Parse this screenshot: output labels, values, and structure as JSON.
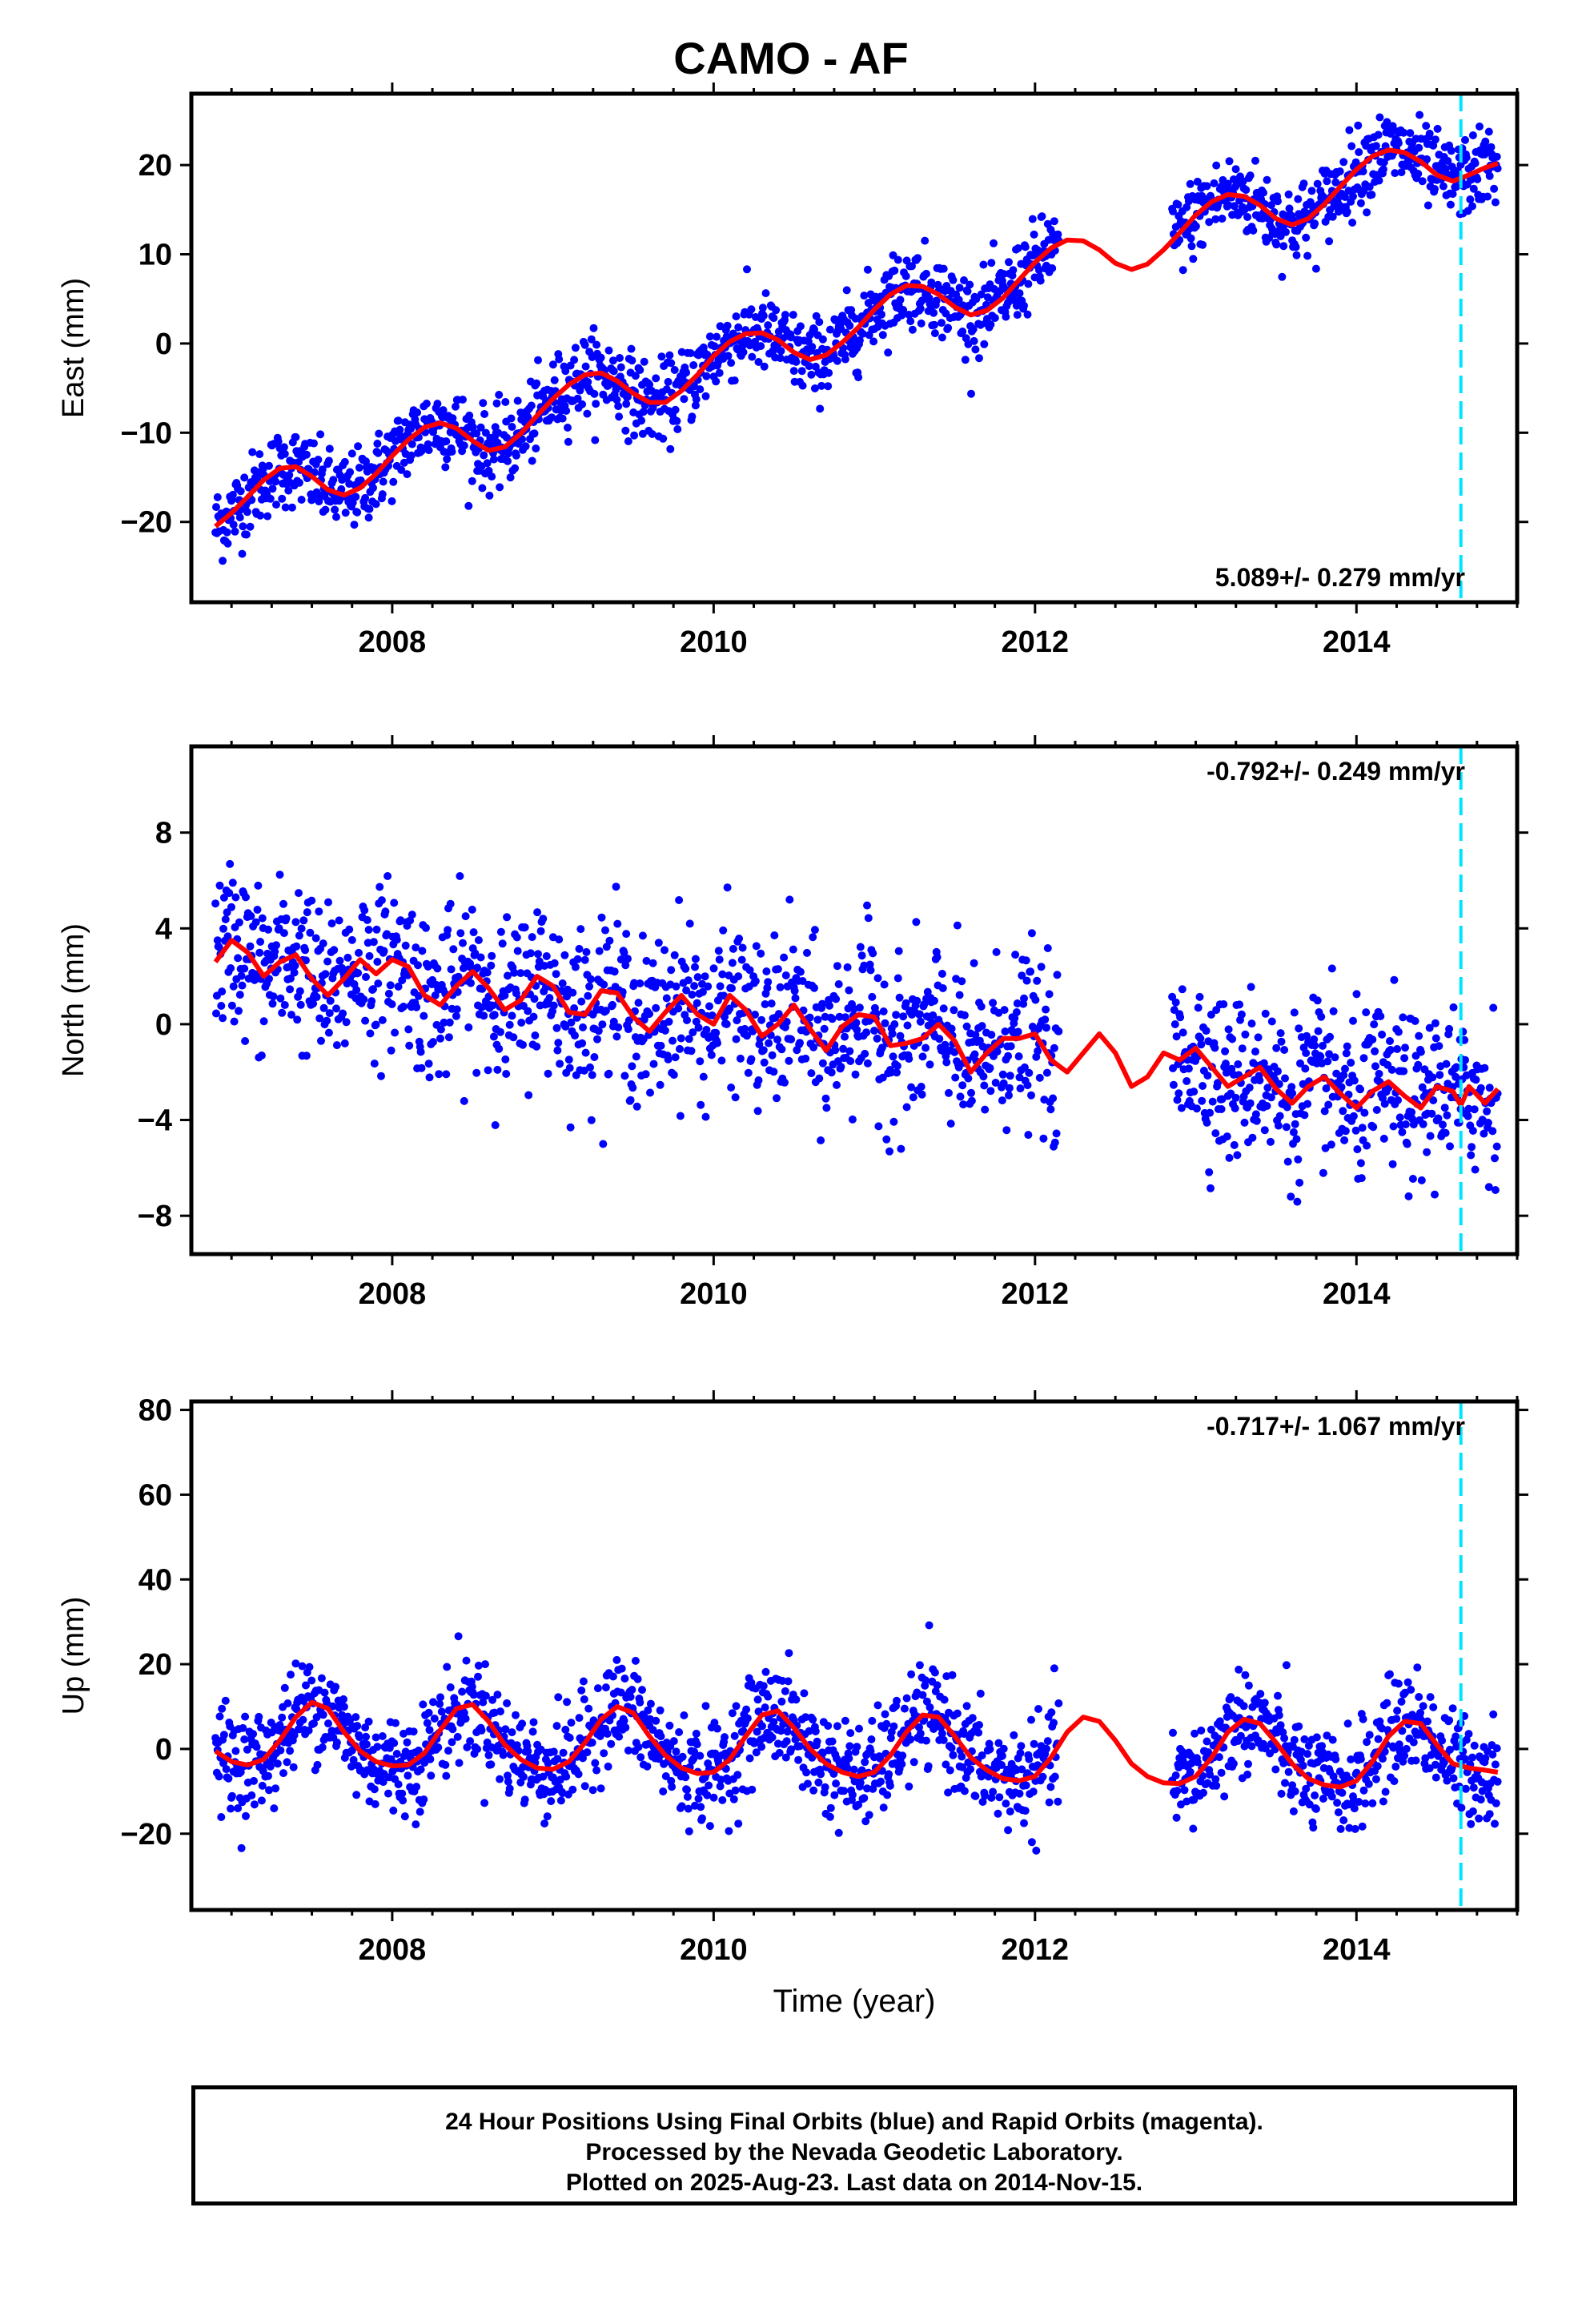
{
  "title": "CAMO - AF",
  "footer": {
    "line1": "24 Hour Positions Using Final Orbits (blue) and Rapid Orbits (magenta).",
    "line2": "Processed by the Nevada Geodetic Laboratory.",
    "line3": "Plotted on 2025-Aug-23. Last data on 2014-Nov-15."
  },
  "colors": {
    "data": "#0000ff",
    "model": "#ff0000",
    "marker": "#00e5ff",
    "frame": "#000000"
  },
  "chart_data": [
    {
      "type": "scatter",
      "ylabel": "East (mm)",
      "xlabel": "",
      "xlim": [
        2006.75,
        2015.0
      ],
      "ylim": [
        -29,
        28
      ],
      "xticks": [
        2008,
        2010,
        2012,
        2014
      ],
      "yticks": [
        -20,
        -10,
        0,
        10,
        20
      ],
      "rate_label": "5.089+/- 0.279 mm/yr",
      "rate_position": "bottom-right",
      "vertical_marker": 2014.65,
      "grid": false,
      "series": [
        {
          "kind": "model",
          "x": [
            2006.9,
            2007.0,
            2007.1,
            2007.2,
            2007.3,
            2007.4,
            2007.5,
            2007.6,
            2007.7,
            2007.8,
            2007.9,
            2008.0,
            2008.1,
            2008.2,
            2008.3,
            2008.4,
            2008.5,
            2008.6,
            2008.7,
            2008.8,
            2008.9,
            2009.0,
            2009.1,
            2009.2,
            2009.3,
            2009.4,
            2009.5,
            2009.6,
            2009.7,
            2009.8,
            2009.9,
            2010.0,
            2010.1,
            2010.2,
            2010.3,
            2010.4,
            2010.5,
            2010.6,
            2010.7,
            2010.8,
            2010.9,
            2011.0,
            2011.1,
            2011.2,
            2011.3,
            2011.4,
            2011.5,
            2011.6,
            2011.7,
            2011.8,
            2011.9,
            2012.0,
            2012.1,
            2012.2,
            2012.3,
            2012.4,
            2012.5,
            2012.6,
            2012.7,
            2012.8,
            2012.9,
            2013.0,
            2013.1,
            2013.2,
            2013.3,
            2013.4,
            2013.5,
            2013.6,
            2013.7,
            2013.8,
            2013.9,
            2014.0,
            2014.1,
            2014.2,
            2014.3,
            2014.4,
            2014.5,
            2014.6,
            2014.7,
            2014.8,
            2014.88
          ],
          "y": [
            -20.5,
            -19.0,
            -17.2,
            -15.3,
            -14.0,
            -13.8,
            -14.9,
            -16.4,
            -17.0,
            -16.2,
            -14.6,
            -12.6,
            -10.8,
            -9.4,
            -8.9,
            -9.5,
            -10.9,
            -12.0,
            -11.6,
            -10.1,
            -8.1,
            -6.2,
            -4.6,
            -3.5,
            -3.3,
            -4.2,
            -5.6,
            -6.6,
            -6.6,
            -5.3,
            -3.5,
            -1.4,
            0.2,
            1.1,
            1.2,
            0.4,
            -1.0,
            -1.8,
            -1.3,
            0.1,
            1.8,
            3.8,
            5.5,
            6.5,
            6.4,
            5.5,
            4.1,
            3.2,
            3.7,
            5.1,
            7.1,
            9.1,
            10.7,
            11.6,
            11.5,
            10.5,
            9.0,
            8.3,
            8.9,
            10.5,
            12.4,
            14.4,
            15.9,
            16.7,
            16.5,
            15.5,
            14.0,
            13.3,
            14.0,
            15.6,
            17.6,
            19.5,
            21.0,
            21.7,
            21.4,
            20.4,
            18.9,
            18.2,
            18.9,
            19.7,
            20.2
          ]
        }
      ]
    },
    {
      "type": "scatter",
      "ylabel": "North (mm)",
      "xlabel": "",
      "xlim": [
        2006.75,
        2015.0
      ],
      "ylim": [
        -9.6,
        11.6
      ],
      "xticks": [
        2008,
        2010,
        2012,
        2014
      ],
      "yticks": [
        -8,
        -4,
        0,
        4,
        8
      ],
      "rate_label": "-0.792+/- 0.249 mm/yr",
      "rate_position": "top-right",
      "vertical_marker": 2014.65,
      "grid": false,
      "series": [
        {
          "kind": "model",
          "x": [
            2006.9,
            2007.0,
            2007.1,
            2007.2,
            2007.3,
            2007.4,
            2007.5,
            2007.6,
            2007.7,
            2007.8,
            2007.9,
            2008.0,
            2008.1,
            2008.2,
            2008.3,
            2008.4,
            2008.5,
            2008.6,
            2008.7,
            2008.8,
            2008.9,
            2009.0,
            2009.1,
            2009.2,
            2009.3,
            2009.4,
            2009.5,
            2009.6,
            2009.7,
            2009.8,
            2009.9,
            2010.0,
            2010.1,
            2010.2,
            2010.3,
            2010.4,
            2010.5,
            2010.6,
            2010.7,
            2010.8,
            2010.9,
            2011.0,
            2011.1,
            2011.2,
            2011.3,
            2011.4,
            2011.5,
            2011.6,
            2011.7,
            2011.8,
            2011.9,
            2012.0,
            2012.1,
            2012.2,
            2012.3,
            2012.4,
            2012.5,
            2012.6,
            2012.7,
            2012.8,
            2012.9,
            2013.0,
            2013.1,
            2013.2,
            2013.3,
            2013.4,
            2013.5,
            2013.6,
            2013.7,
            2013.8,
            2013.9,
            2014.0,
            2014.1,
            2014.2,
            2014.3,
            2014.4,
            2014.5,
            2014.6,
            2014.65,
            2014.7,
            2014.8,
            2014.88
          ],
          "y": [
            2.6,
            3.5,
            3.0,
            2.0,
            2.6,
            2.9,
            1.9,
            1.2,
            1.9,
            2.7,
            2.1,
            2.7,
            2.4,
            1.2,
            0.8,
            1.6,
            2.2,
            1.5,
            0.6,
            1.0,
            2.0,
            1.6,
            0.5,
            0.4,
            1.4,
            1.3,
            0.3,
            -0.3,
            0.5,
            1.2,
            0.4,
            0.0,
            1.2,
            0.6,
            -0.5,
            0.0,
            0.8,
            -0.2,
            -1.1,
            -0.1,
            0.4,
            0.3,
            -0.9,
            -0.8,
            -0.6,
            0.0,
            -0.7,
            -2.0,
            -1.2,
            -0.6,
            -0.6,
            -0.4,
            -1.5,
            -2.0,
            -1.2,
            -0.4,
            -1.2,
            -2.6,
            -2.2,
            -1.2,
            -1.5,
            -1.0,
            -1.8,
            -2.6,
            -2.2,
            -1.8,
            -2.7,
            -3.3,
            -2.6,
            -2.2,
            -2.9,
            -3.5,
            -2.8,
            -2.4,
            -3.0,
            -3.5,
            -2.6,
            -2.8,
            -3.4,
            -2.6,
            -3.3,
            -2.7
          ]
        }
      ]
    },
    {
      "type": "scatter",
      "ylabel": "Up (mm)",
      "xlabel": "Time (year)",
      "xlim": [
        2006.75,
        2015.0
      ],
      "ylim": [
        -38,
        82
      ],
      "xticks": [
        2008,
        2010,
        2012,
        2014
      ],
      "yticks": [
        -20,
        0,
        20,
        40,
        60,
        80
      ],
      "rate_label": "-0.717+/- 1.067 mm/yr",
      "rate_position": "top-right",
      "vertical_marker": 2014.65,
      "grid": false,
      "series": [
        {
          "kind": "model",
          "x": [
            2006.9,
            2007.0,
            2007.1,
            2007.2,
            2007.3,
            2007.4,
            2007.5,
            2007.6,
            2007.7,
            2007.8,
            2007.9,
            2008.0,
            2008.1,
            2008.2,
            2008.3,
            2008.4,
            2008.5,
            2008.6,
            2008.7,
            2008.8,
            2008.9,
            2009.0,
            2009.1,
            2009.2,
            2009.3,
            2009.4,
            2009.5,
            2009.6,
            2009.7,
            2009.8,
            2009.9,
            2010.0,
            2010.1,
            2010.2,
            2010.3,
            2010.4,
            2010.5,
            2010.6,
            2010.7,
            2010.8,
            2010.9,
            2011.0,
            2011.1,
            2011.2,
            2011.3,
            2011.4,
            2011.5,
            2011.6,
            2011.7,
            2011.8,
            2011.9,
            2012.0,
            2012.1,
            2012.2,
            2012.3,
            2012.4,
            2012.5,
            2012.6,
            2012.7,
            2012.8,
            2012.9,
            2013.0,
            2013.1,
            2013.2,
            2013.3,
            2013.4,
            2013.5,
            2013.6,
            2013.7,
            2013.8,
            2013.9,
            2014.0,
            2014.1,
            2014.2,
            2014.3,
            2014.4,
            2014.5,
            2014.6,
            2014.7,
            2014.8,
            2014.88
          ],
          "y": [
            -0.5,
            -3.0,
            -3.8,
            -2.5,
            2.0,
            7.5,
            11.0,
            9.5,
            4.0,
            -0.5,
            -3.0,
            -4.0,
            -3.8,
            -1.0,
            4.5,
            9.5,
            10.5,
            6.5,
            1.0,
            -2.5,
            -4.5,
            -4.8,
            -3.0,
            1.5,
            7.0,
            10.0,
            8.5,
            3.0,
            -1.5,
            -4.5,
            -5.8,
            -5.5,
            -2.5,
            3.0,
            8.0,
            9.0,
            5.0,
            0.0,
            -3.5,
            -5.5,
            -6.5,
            -5.5,
            -1.5,
            4.0,
            8.0,
            7.5,
            3.0,
            -2.0,
            -5.0,
            -7.0,
            -7.5,
            -6.5,
            -2.0,
            4.0,
            7.5,
            6.5,
            2.0,
            -3.5,
            -6.5,
            -8.0,
            -8.2,
            -6.5,
            -2.0,
            4.0,
            7.0,
            6.0,
            1.5,
            -3.5,
            -7.0,
            -8.5,
            -9.0,
            -7.5,
            -3.0,
            3.0,
            6.5,
            6.0,
            1.0,
            -3.5,
            -4.5,
            -5.0,
            -5.5
          ]
        }
      ]
    }
  ]
}
